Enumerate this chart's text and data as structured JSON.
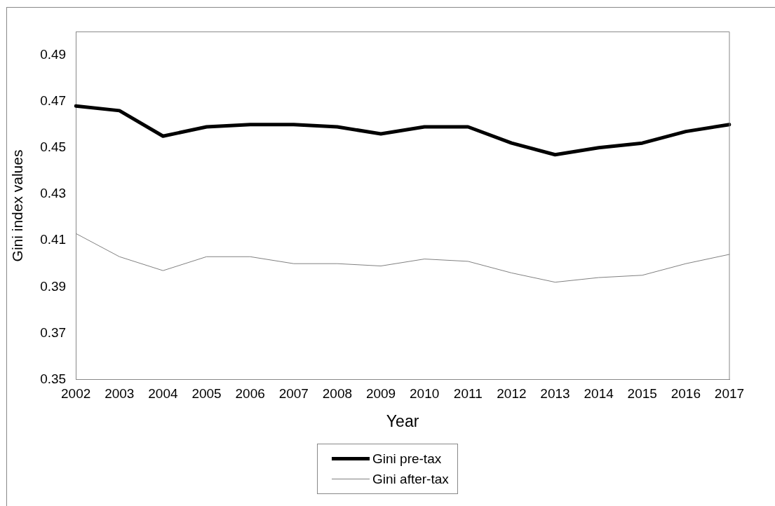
{
  "chart_data": {
    "type": "line",
    "xlabel": "Year",
    "ylabel": "Gini index values",
    "categories": [
      "2002",
      "2003",
      "2004",
      "2005",
      "2006",
      "2007",
      "2008",
      "2009",
      "2010",
      "2011",
      "2012",
      "2013",
      "2014",
      "2015",
      "2016",
      "2017"
    ],
    "series": [
      {
        "name": "Gini pre-tax",
        "color": "#000000",
        "values": [
          0.468,
          0.466,
          0.455,
          0.459,
          0.46,
          0.46,
          0.459,
          0.456,
          0.459,
          0.459,
          0.452,
          0.447,
          0.45,
          0.452,
          0.457,
          0.46
        ]
      },
      {
        "name": "Gini after-tax",
        "color": "#808080",
        "values": [
          0.413,
          0.403,
          0.397,
          0.403,
          0.403,
          0.4,
          0.4,
          0.399,
          0.402,
          0.401,
          0.396,
          0.392,
          0.394,
          0.395,
          0.4,
          0.404
        ]
      }
    ],
    "ylim": [
      0.35,
      0.5
    ],
    "yticks": [
      0.35,
      0.37,
      0.39,
      0.41,
      0.43,
      0.45,
      0.47,
      0.49
    ],
    "grid": false,
    "legend": "bottom",
    "marker": "none",
    "line_style": "solid"
  }
}
